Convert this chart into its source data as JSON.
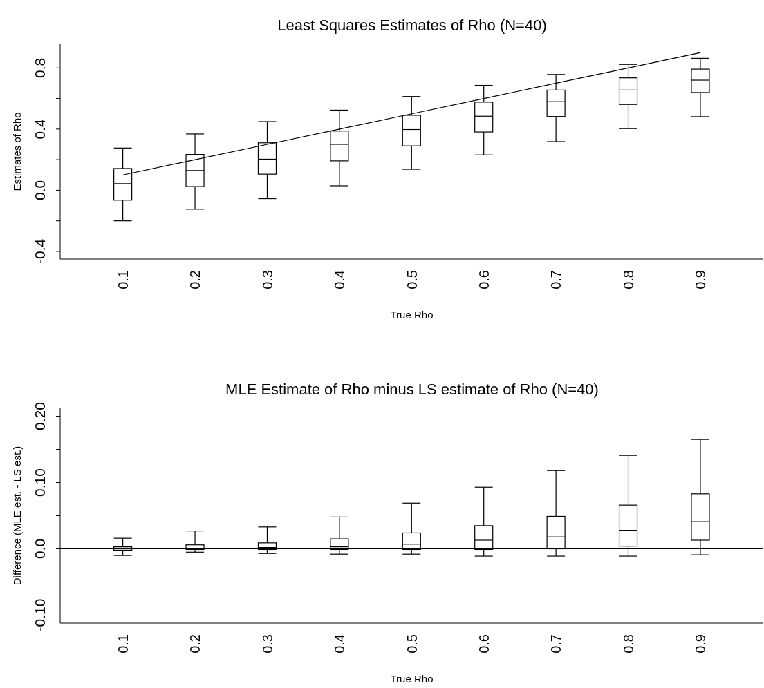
{
  "chart_data": [
    {
      "type": "box",
      "title": "Least Squares Estimates of Rho (N=40)",
      "xlabel": "True Rho",
      "ylabel": "Estimates of Rho",
      "categories": [
        "0.1",
        "0.2",
        "0.3",
        "0.4",
        "0.5",
        "0.6",
        "0.7",
        "0.8",
        "0.9"
      ],
      "ylim": [
        -0.45,
        0.955
      ],
      "yticks": [
        -0.4,
        {
          "value": -0.2,
          "label": null
        },
        {
          "value": 0,
          "label": "0.0"
        },
        {
          "value": 0.2,
          "label": null
        },
        0.4,
        {
          "value": 0.6,
          "label": null
        },
        0.8
      ],
      "boxes": [
        {
          "low": -0.2,
          "q1": -0.065,
          "median": 0.043,
          "q3": 0.142,
          "high": 0.276
        },
        {
          "low": -0.124,
          "q1": 0.024,
          "median": 0.129,
          "q3": 0.234,
          "high": 0.368
        },
        {
          "low": -0.055,
          "q1": 0.105,
          "median": 0.203,
          "q3": 0.31,
          "high": 0.449
        },
        {
          "low": 0.029,
          "q1": 0.192,
          "median": 0.3,
          "q3": 0.387,
          "high": 0.524
        },
        {
          "low": 0.137,
          "q1": 0.29,
          "median": 0.397,
          "q3": 0.49,
          "high": 0.613
        },
        {
          "low": 0.231,
          "q1": 0.381,
          "median": 0.484,
          "q3": 0.576,
          "high": 0.686
        },
        {
          "low": 0.318,
          "q1": 0.482,
          "median": 0.579,
          "q3": 0.655,
          "high": 0.757
        },
        {
          "low": 0.403,
          "q1": 0.561,
          "median": 0.655,
          "q3": 0.735,
          "high": 0.823
        },
        {
          "low": 0.481,
          "q1": 0.639,
          "median": 0.72,
          "q3": 0.792,
          "high": 0.863
        }
      ],
      "series": [
        {
          "type": "line",
          "color": "#000000",
          "x": [
            "0.1",
            "0.2",
            "0.3",
            "0.4",
            "0.5",
            "0.6",
            "0.7",
            "0.8",
            "0.9"
          ],
          "values": [
            0.1,
            0.2,
            0.3,
            0.4,
            0.5,
            0.6,
            0.7,
            0.8,
            0.9
          ]
        }
      ]
    },
    {
      "type": "box",
      "title": "MLE Estimate of Rho minus LS estimate of Rho (N=40)",
      "xlabel": "True Rho",
      "ylabel": "Difference (MLE est. - LS est.)",
      "categories": [
        "0.1",
        "0.2",
        "0.3",
        "0.4",
        "0.5",
        "0.6",
        "0.7",
        "0.8",
        "0.9"
      ],
      "ylim": [
        -0.112,
        0.212
      ],
      "yticks": [
        {
          "value": -0.1,
          "label": "-0.10"
        },
        {
          "value": -0.05,
          "label": null
        },
        {
          "value": 0,
          "label": "0.0"
        },
        {
          "value": 0.05,
          "label": null
        },
        {
          "value": 0.1,
          "label": "0.10"
        },
        {
          "value": 0.15,
          "label": null
        },
        {
          "value": 0.2,
          "label": "0.20"
        }
      ],
      "boxes": [
        {
          "low": -0.01,
          "q1": -0.002,
          "median": 0.001,
          "q3": 0.003,
          "high": 0.016
        },
        {
          "low": -0.005,
          "q1": -0.001,
          "median": 0.0,
          "q3": 0.006,
          "high": 0.027
        },
        {
          "low": -0.007,
          "q1": -0.001,
          "median": 0.002,
          "q3": 0.009,
          "high": 0.033
        },
        {
          "low": -0.008,
          "q1": -0.001,
          "median": 0.003,
          "q3": 0.015,
          "high": 0.048
        },
        {
          "low": -0.008,
          "q1": -0.001,
          "median": 0.007,
          "q3": 0.024,
          "high": 0.069
        },
        {
          "low": -0.011,
          "q1": -0.001,
          "median": 0.013,
          "q3": 0.035,
          "high": 0.093
        },
        {
          "low": -0.011,
          "q1": 0.0,
          "median": 0.018,
          "q3": 0.049,
          "high": 0.118
        },
        {
          "low": -0.011,
          "q1": 0.004,
          "median": 0.028,
          "q3": 0.066,
          "high": 0.141
        },
        {
          "low": -0.009,
          "q1": 0.013,
          "median": 0.041,
          "q3": 0.083,
          "high": 0.165
        }
      ],
      "ref_lines": [
        {
          "axis": "y",
          "value": 0
        }
      ]
    }
  ]
}
